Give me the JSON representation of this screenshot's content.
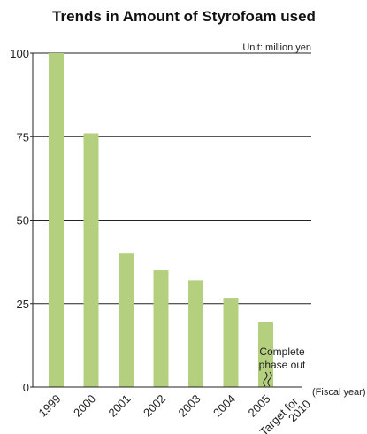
{
  "chart_data": {
    "type": "bar",
    "title": "Trends in Amount of Styrofoam used",
    "unit_label": "Unit: million yen",
    "xlabel": "(Fiscal year)",
    "ylabel": "",
    "categories": [
      "1999",
      "2000",
      "2001",
      "2002",
      "2003",
      "2004",
      "2005",
      "Target for 2010"
    ],
    "values": [
      100,
      76,
      40,
      35,
      32,
      26.5,
      19.5,
      0
    ],
    "ylim": [
      0,
      100
    ],
    "yticks": [
      0,
      25,
      50,
      75,
      100
    ],
    "grid": true,
    "bar_color": "#b4d07e",
    "annotation": {
      "line1": "Complete",
      "line2": "phase out"
    },
    "target_label": {
      "line1": "Target for",
      "line2": "2010"
    }
  }
}
